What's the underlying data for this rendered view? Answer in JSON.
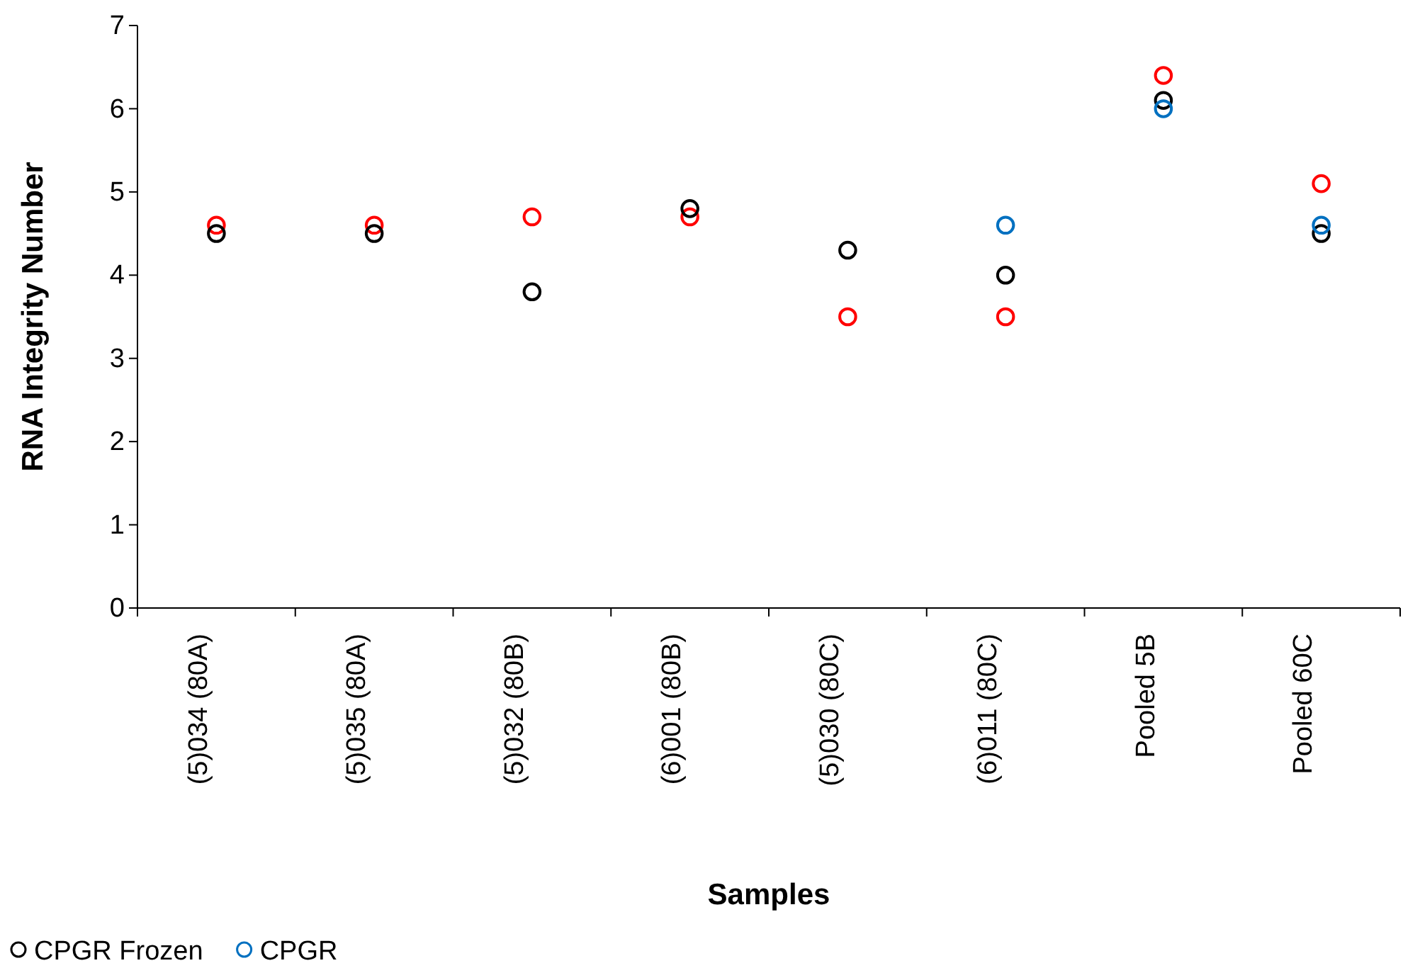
{
  "chart_data": {
    "type": "scatter",
    "xlabel": "Samples",
    "ylabel": "RNA Integrity Number",
    "categories": [
      "(5)034 (80A)",
      "(5)035 (80A)",
      "(5)032 (80B)",
      "(6)001 (80B)",
      "(5)030 (80C)",
      "(6)011 (80C)",
      "Pooled 5B",
      "Pooled 60C"
    ],
    "series": [
      {
        "color": "#ff0000",
        "values": [
          4.6,
          4.6,
          4.7,
          4.7,
          3.5,
          3.5,
          6.4,
          5.1
        ]
      },
      {
        "name": "CPGR Frozen",
        "color": "#000000",
        "values": [
          4.5,
          4.5,
          3.8,
          4.8,
          4.3,
          4.0,
          6.1,
          4.5
        ]
      },
      {
        "name": "CPGR",
        "color": "#0070c0",
        "values": [
          null,
          null,
          null,
          null,
          null,
          4.6,
          6.0,
          4.6
        ]
      }
    ],
    "ylim": [
      0,
      7
    ],
    "yticks": [
      0,
      1,
      2,
      3,
      4,
      5,
      6,
      7
    ],
    "grid": false,
    "legend": "bottom left",
    "marker": "circle"
  }
}
